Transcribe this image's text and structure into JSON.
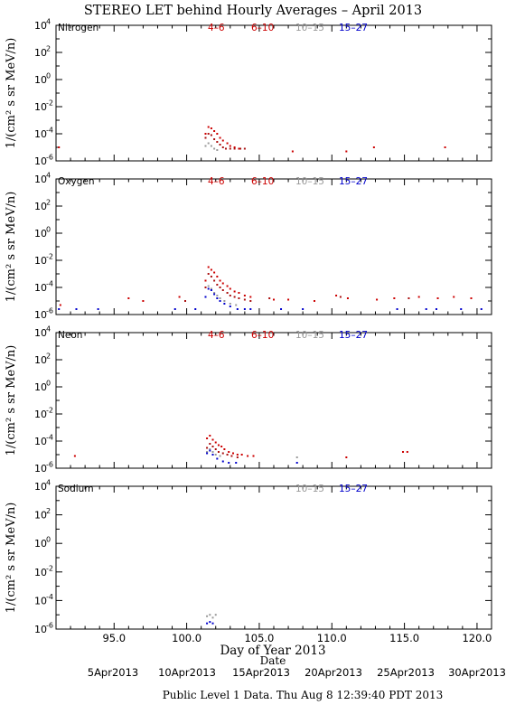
{
  "title": "STEREO LET behind Hourly Averages – April 2013",
  "colors": {
    "c1": "#cc0000",
    "c2": "#aa1010",
    "c3": "#999999",
    "c4": "#0000cc",
    "frame": "#000000"
  },
  "ylabel": "1/(cm² s sr MeV/n)",
  "xlabel": "Day of Year 2013",
  "date_label": "Date",
  "footer": "Public Level 1 Data. Thu Aug  8 12:39:40 PDT 2013",
  "x_ticks": [
    "95.0",
    "100.0",
    "105.0",
    "110.0",
    "115.0",
    "120.0"
  ],
  "date_ticks": [
    "5Apr2013",
    "10Apr2013",
    "15Apr2013",
    "20Apr2013",
    "25Apr2013",
    "30Apr2013"
  ],
  "legend_labels": [
    "4–6",
    "6–10",
    "10–15",
    "15–27"
  ],
  "chart_data": [
    {
      "type": "scatter",
      "panel": "Nitrogen",
      "legend": [
        "4–6",
        "6–10",
        "10–15",
        "15–27"
      ],
      "x_range": [
        91,
        121
      ],
      "y_range_log10": [
        -6,
        4
      ],
      "y_ticks": [
        "10^4",
        "10^2",
        "10^0",
        "10^-2",
        "10^-4",
        "10^-6"
      ],
      "series": [
        {
          "name": "4–6",
          "x": [
            91.2,
            101.3,
            101.5,
            101.7,
            101.9,
            102.1,
            102.3,
            102.5,
            102.8,
            103.0,
            103.3,
            103.6,
            107.3,
            111.0,
            112.9,
            117.8
          ],
          "y_log10": [
            -5.0,
            -4.0,
            -3.5,
            -3.6,
            -3.8,
            -4.0,
            -4.3,
            -4.5,
            -4.7,
            -4.9,
            -5.0,
            -5.1,
            -5.3,
            -5.3,
            -5.0,
            -5.0
          ]
        },
        {
          "name": "6–10",
          "x": [
            101.3,
            101.5,
            101.7,
            101.9,
            102.1,
            102.3,
            102.5,
            102.7,
            103.0,
            103.3,
            103.7,
            104.0
          ],
          "y_log10": [
            -4.3,
            -4.0,
            -4.1,
            -4.4,
            -4.6,
            -4.8,
            -5.0,
            -5.1,
            -5.1,
            -5.1,
            -5.1,
            -5.1
          ]
        },
        {
          "name": "10–15",
          "x": [
            101.3,
            101.5,
            101.7,
            101.9,
            102.1
          ],
          "y_log10": [
            -4.9,
            -4.7,
            -4.9,
            -5.1,
            -5.2
          ]
        },
        {
          "name": "15–27",
          "x": [],
          "y_log10": []
        }
      ]
    },
    {
      "type": "scatter",
      "panel": "Oxygen",
      "legend": [
        "4–6",
        "6–10",
        "10–15",
        "15–27"
      ],
      "x_range": [
        91,
        121
      ],
      "y_range_log10": [
        -6,
        4
      ],
      "y_ticks": [
        "10^4",
        "10^2",
        "10^0",
        "10^-2",
        "10^-4",
        "10^-6"
      ],
      "series": [
        {
          "name": "4–6",
          "x": [
            91.3,
            96.0,
            97.0,
            99.5,
            101.3,
            101.5,
            101.7,
            101.9,
            102.1,
            102.3,
            102.5,
            102.8,
            103.0,
            103.3,
            103.6,
            104.0,
            104.4,
            106.0,
            107.0,
            108.8,
            110.3,
            111.1,
            113.1,
            114.3,
            116.0,
            117.3,
            118.4,
            119.6
          ],
          "y_log10": [
            -5.3,
            -4.8,
            -5.0,
            -4.7,
            -3.5,
            -2.5,
            -2.7,
            -2.9,
            -3.2,
            -3.5,
            -3.7,
            -3.9,
            -4.1,
            -4.3,
            -4.4,
            -4.6,
            -4.7,
            -4.9,
            -4.9,
            -5.0,
            -4.6,
            -4.8,
            -4.9,
            -4.8,
            -4.7,
            -4.8,
            -4.7,
            -4.8
          ]
        },
        {
          "name": "6–10",
          "x": [
            99.9,
            101.3,
            101.5,
            101.7,
            101.9,
            102.1,
            102.3,
            102.5,
            102.8,
            103.0,
            103.3,
            103.6,
            104.0,
            104.4,
            105.7,
            110.6,
            115.3
          ],
          "y_log10": [
            -5.0,
            -4.0,
            -3.0,
            -3.2,
            -3.5,
            -3.8,
            -4.0,
            -4.2,
            -4.4,
            -4.6,
            -4.7,
            -4.8,
            -4.9,
            -5.0,
            -4.8,
            -4.7,
            -4.8
          ]
        },
        {
          "name": "10–15",
          "x": [
            101.3,
            101.5,
            101.7,
            101.9,
            102.1,
            102.3,
            102.6,
            103.0,
            103.4
          ],
          "y_log10": [
            -4.7,
            -3.9,
            -4.1,
            -4.4,
            -4.6,
            -4.8,
            -5.0,
            -5.2,
            -5.3
          ]
        },
        {
          "name": "15–27",
          "x": [
            91.2,
            92.4,
            93.9,
            99.2,
            100.6,
            101.3,
            101.5,
            101.7,
            101.9,
            102.1,
            102.3,
            102.6,
            103.0,
            103.5,
            104.0,
            104.4,
            106.5,
            108.0,
            114.5,
            116.5,
            117.2,
            118.9,
            120.3
          ],
          "y_log10": [
            -5.6,
            -5.6,
            -5.6,
            -5.6,
            -5.6,
            -4.7,
            -4.1,
            -4.2,
            -4.5,
            -4.8,
            -5.0,
            -5.2,
            -5.4,
            -5.6,
            -5.6,
            -5.6,
            -5.6,
            -5.6,
            -5.6,
            -5.6,
            -5.6,
            -5.6,
            -5.6
          ]
        }
      ]
    },
    {
      "type": "scatter",
      "panel": "Neon",
      "legend": [
        "4–6",
        "6–10",
        "10–15",
        "15–27"
      ],
      "x_range": [
        91,
        121
      ],
      "y_range_log10": [
        -6,
        4
      ],
      "y_ticks": [
        "10^4",
        "10^2",
        "10^0",
        "10^-2",
        "10^-4",
        "10^-6"
      ],
      "series": [
        {
          "name": "4–6",
          "x": [
            92.3,
            101.4,
            101.6,
            101.8,
            102.0,
            102.2,
            102.4,
            102.6,
            102.9,
            103.2,
            103.5,
            103.8,
            104.2,
            104.6,
            111.0,
            114.9,
            115.2
          ],
          "y_log10": [
            -5.1,
            -3.8,
            -3.6,
            -3.9,
            -4.1,
            -4.3,
            -4.4,
            -4.6,
            -4.8,
            -4.9,
            -5.0,
            -5.0,
            -5.1,
            -5.1,
            -5.2,
            -4.8,
            -4.8
          ]
        },
        {
          "name": "6–10",
          "x": [
            101.4,
            101.6,
            101.8,
            102.0,
            102.2,
            102.5,
            102.8,
            103.1,
            103.5
          ],
          "y_log10": [
            -4.5,
            -4.2,
            -4.4,
            -4.6,
            -4.8,
            -4.9,
            -5.0,
            -5.1,
            -5.2
          ]
        },
        {
          "name": "10–15",
          "x": [
            101.4,
            101.6,
            101.8,
            102.0,
            102.3,
            107.6
          ],
          "y_log10": [
            -4.8,
            -4.6,
            -4.8,
            -5.0,
            -5.1,
            -5.2
          ]
        },
        {
          "name": "15–27",
          "x": [
            101.4,
            101.6,
            101.8,
            102.1,
            102.5,
            102.9,
            103.4,
            107.6
          ],
          "y_log10": [
            -4.9,
            -4.7,
            -5.0,
            -5.3,
            -5.5,
            -5.6,
            -5.6,
            -5.6
          ]
        }
      ]
    },
    {
      "type": "scatter",
      "panel": "Sodium",
      "legend": [
        "10–15",
        "15–27"
      ],
      "x_range": [
        91,
        121
      ],
      "y_range_log10": [
        -6,
        4
      ],
      "y_ticks": [
        "10^4",
        "10^2",
        "10^0",
        "10^-2",
        "10^-4",
        "10^-6"
      ],
      "series": [
        {
          "name": "10–15",
          "x": [
            101.4,
            101.6,
            101.8,
            102.0
          ],
          "y_log10": [
            -5.1,
            -5.0,
            -5.2,
            -5.0
          ]
        },
        {
          "name": "15–27",
          "x": [
            101.4,
            101.6,
            101.8
          ],
          "y_log10": [
            -5.6,
            -5.5,
            -5.6
          ]
        }
      ]
    }
  ]
}
